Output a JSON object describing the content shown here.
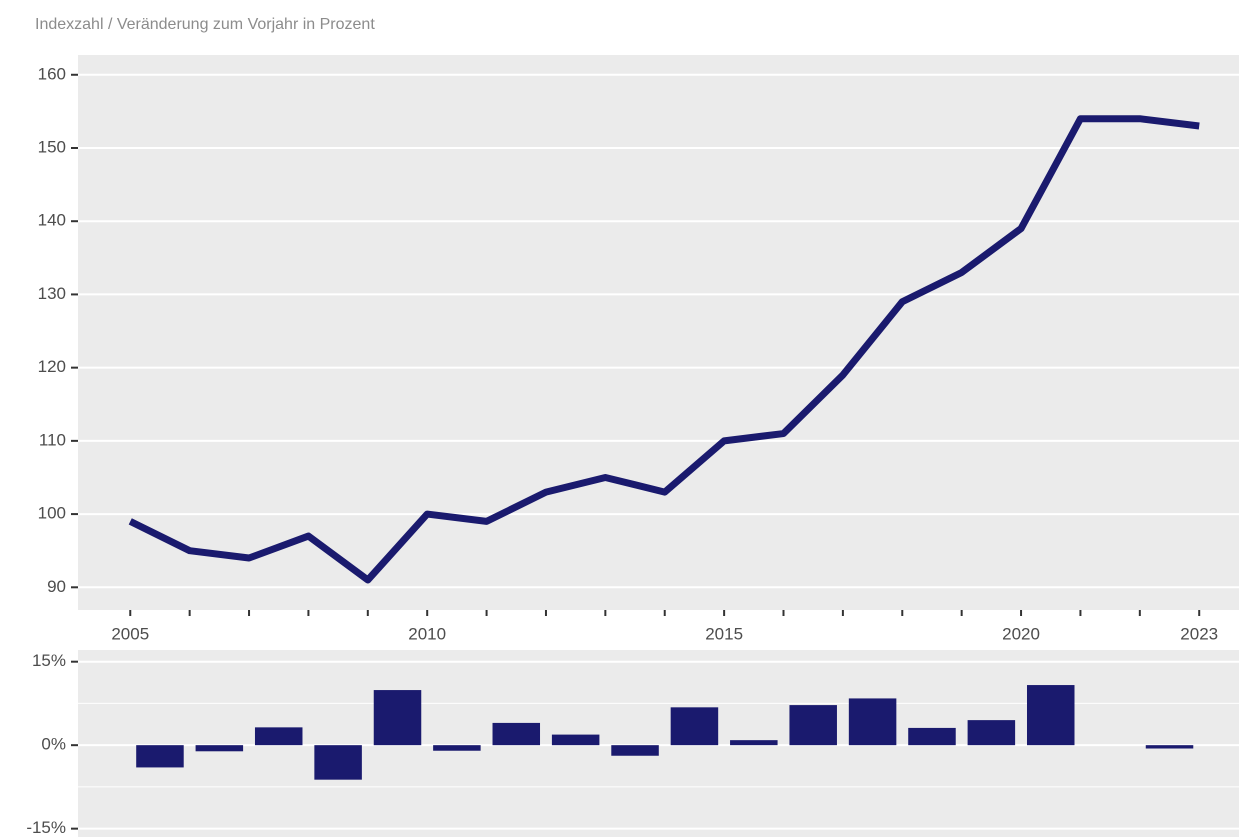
{
  "chart_data": [
    {
      "type": "line",
      "subtitle": "Indexzahl / Veränderung zum Vorjahr in Prozent",
      "x": [
        2005,
        2006,
        2007,
        2008,
        2009,
        2010,
        2011,
        2012,
        2013,
        2014,
        2015,
        2016,
        2017,
        2018,
        2019,
        2020,
        2021,
        2022,
        2023
      ],
      "values": [
        99,
        95,
        94,
        97,
        91,
        100,
        99,
        103,
        105,
        103,
        110,
        111,
        119,
        129,
        133,
        139,
        154,
        154,
        153
      ],
      "color": "#1a1a6e",
      "grid": true,
      "xlim": [
        2004.12,
        2023.67
      ],
      "xticks": [
        2005,
        2010,
        2015,
        2020,
        2023
      ],
      "ylim": [
        86.9,
        162.7
      ],
      "yticks": [
        90,
        100,
        110,
        120,
        130,
        140,
        150,
        160
      ]
    },
    {
      "type": "bar",
      "x": [
        2006,
        2007,
        2008,
        2009,
        2010,
        2011,
        2012,
        2013,
        2014,
        2015,
        2016,
        2017,
        2018,
        2019,
        2020,
        2021,
        2022,
        2023
      ],
      "values": [
        -4.0,
        -1.1,
        3.2,
        -6.2,
        9.9,
        -1.0,
        4.0,
        1.9,
        -1.9,
        6.8,
        0.9,
        7.2,
        8.4,
        3.1,
        4.5,
        10.8,
        0,
        -0.6
      ],
      "color": "#1a1a6e",
      "grid": true,
      "xlim": [
        2004.12,
        2023.67
      ],
      "ylim": [
        -16.5,
        17.1
      ],
      "yticks": [
        {
          "value": -15,
          "label": "-15%"
        },
        {
          "value": 0,
          "label": "0%"
        },
        {
          "value": 15,
          "label": "15%"
        }
      ],
      "yminor": [
        -7.5,
        7.5
      ]
    }
  ]
}
